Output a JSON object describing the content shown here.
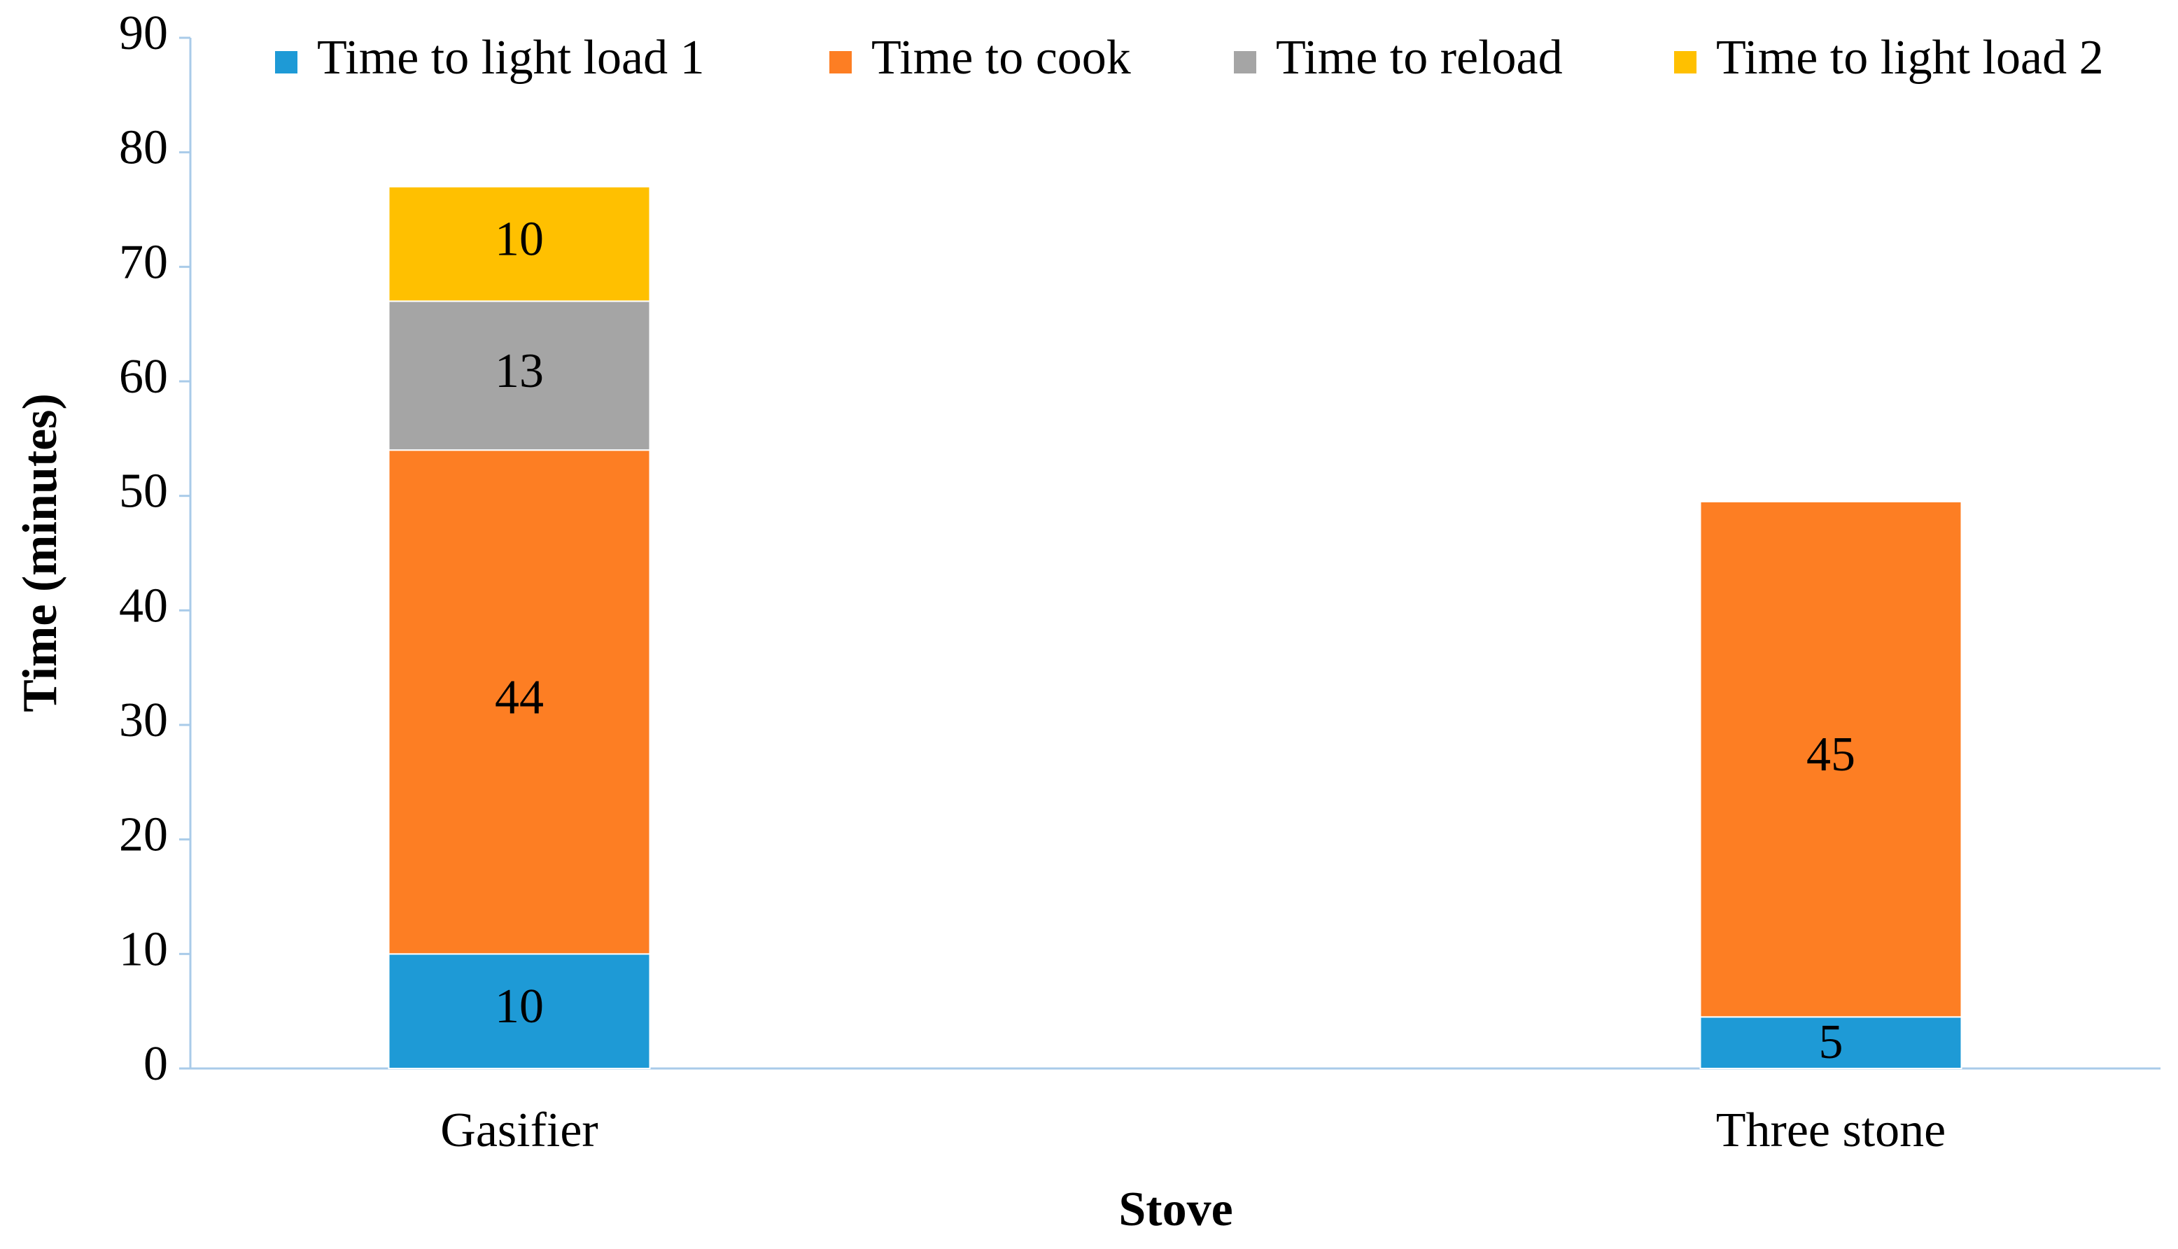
{
  "chart_data": {
    "type": "stacked_bar",
    "x_label": "Stove",
    "y_label": "Time (minutes)",
    "categories": [
      "Gasifier",
      "Three stone"
    ],
    "series": [
      {
        "name": "Time to light load 1",
        "color": "#1e9ad6",
        "values": [
          10,
          4.5
        ],
        "value_labels": [
          "10",
          "5"
        ]
      },
      {
        "name": "Time to cook",
        "color": "#fd7e23",
        "values": [
          44,
          45
        ]
      },
      {
        "name": "Time to reload",
        "color": "#a5a5a5",
        "values": [
          13,
          null
        ]
      },
      {
        "name": "Time to light load 2",
        "color": "#ffc000",
        "values": [
          10,
          null
        ]
      }
    ],
    "ylim": [
      0,
      90
    ],
    "yticks": [
      0,
      10,
      20,
      30,
      40,
      50,
      60,
      70,
      80,
      90
    ],
    "grid": false,
    "legend": "top"
  }
}
